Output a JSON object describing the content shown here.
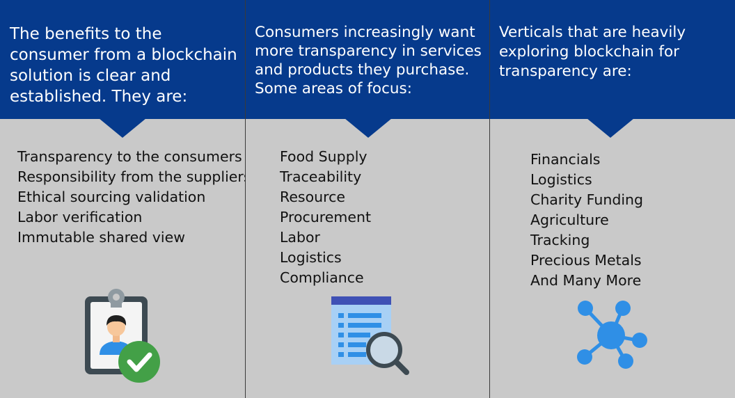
{
  "columns": [
    {
      "header": "The benefits to the consumer from a blockchain solution is clear and established.  They are:",
      "items": [
        "Transparency to the consumers",
        "Responsibility from the suppliers",
        "Ethical sourcing validation",
        "Labor verification",
        "Immutable shared view"
      ],
      "icon": "id-badge-check-icon"
    },
    {
      "header": "Consumers increasingly want more transparency in  services and products they purchase. Some areas of focus:",
      "items": [
        "Food Supply",
        "Traceability",
        "Resource",
        "Procurement",
        "Labor",
        "Logistics",
        "Compliance"
      ],
      "icon": "document-search-icon"
    },
    {
      "header": "Verticals that are heavily exploring blockchain for transparency are:",
      "items": [
        "Financials",
        "Logistics",
        "Charity Funding",
        "Agriculture",
        "Tracking",
        "Precious Metals",
        "And Many More"
      ],
      "icon": "network-nodes-icon"
    }
  ],
  "colors": {
    "header_bg": "#063a8c",
    "body_bg": "#c9c9c9",
    "icon_blue": "#2f8fe6",
    "check_green": "#43a047"
  }
}
